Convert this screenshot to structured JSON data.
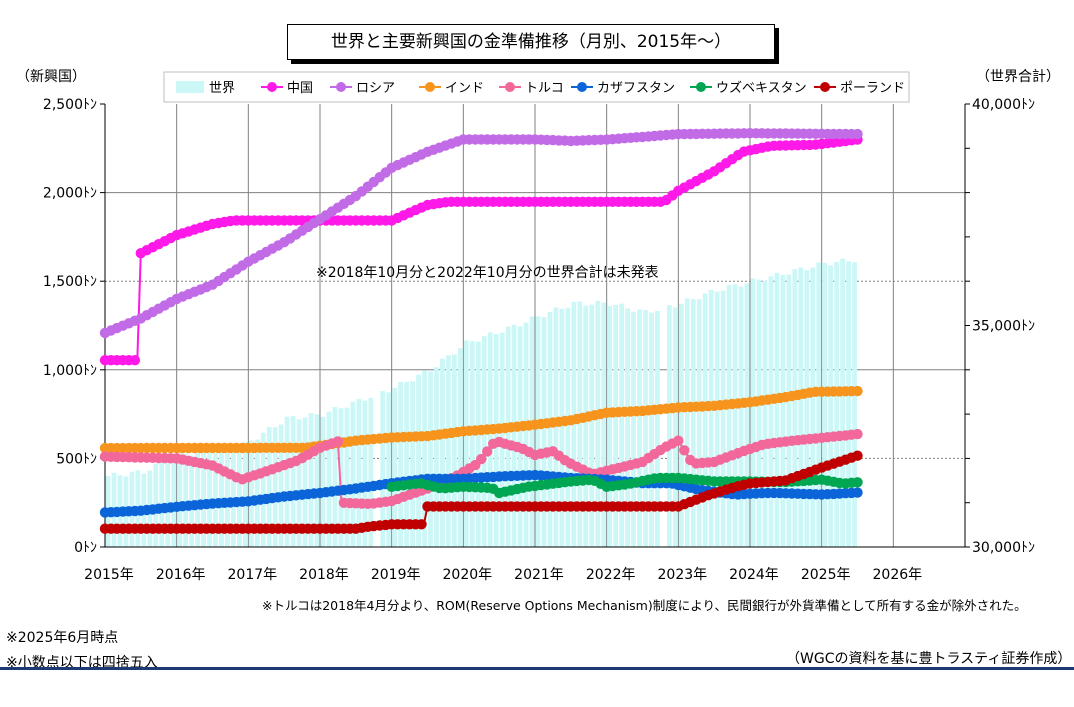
{
  "chart_data": {
    "type": "line",
    "title": "世界と主要新興国の金準備推移（月別、2015年～）",
    "left_axis": {
      "unit_label": "（新興国）",
      "min": 0,
      "max": 2500,
      "step": 500,
      "tick_labels": [
        "0ﾄﾝ",
        "500ﾄﾝ",
        "1,000ﾄﾝ",
        "1,500ﾄﾝ",
        "2,000ﾄﾝ",
        "2,500ﾄﾝ"
      ]
    },
    "right_axis": {
      "unit_label": "（世界合計）",
      "min": 30000,
      "max": 40000,
      "tick_labels": [
        "30,000ﾄﾝ",
        "35,000ﾄﾝ",
        "40,000ﾄﾝ"
      ]
    },
    "x_axis": {
      "start": 2015,
      "end": 2027,
      "tick_labels": [
        "2015年",
        "2016年",
        "2017年",
        "2018年",
        "2019年",
        "2020年",
        "2021年",
        "2022年",
        "2023年",
        "2024年",
        "2025年",
        "2026年"
      ]
    },
    "grid": true,
    "legend_position": "top",
    "world": {
      "name": "世界",
      "color": "#ccf7f7",
      "axis": "right",
      "points": [
        [
          2015.0,
          31600
        ],
        [
          2015.5,
          31700
        ],
        [
          2016.0,
          32100
        ],
        [
          2016.8,
          32200
        ],
        [
          2017.5,
          32900
        ],
        [
          2018.0,
          33000
        ],
        [
          2018.5,
          33300
        ],
        [
          2019.0,
          33600
        ],
        [
          2019.5,
          34000
        ],
        [
          2020.0,
          34600
        ],
        [
          2020.7,
          35000
        ],
        [
          2021.0,
          35200
        ],
        [
          2021.5,
          35500
        ],
        [
          2022.0,
          35500
        ],
        [
          2022.5,
          35300
        ],
        [
          2023.0,
          35500
        ],
        [
          2023.5,
          35800
        ],
        [
          2024.0,
          36000
        ],
        [
          2024.5,
          36200
        ],
        [
          2025.0,
          36400
        ],
        [
          2025.5,
          36500
        ]
      ],
      "missing": [
        "2018年10月",
        "2022年10月"
      ]
    },
    "series": [
      {
        "name": "中国",
        "color": "#ff19e8",
        "points": [
          [
            2015.0,
            1054
          ],
          [
            2015.45,
            1054
          ],
          [
            2015.5,
            1658
          ],
          [
            2016.0,
            1760
          ],
          [
            2016.5,
            1823
          ],
          [
            2016.8,
            1843
          ],
          [
            2019.0,
            1843
          ],
          [
            2019.5,
            1930
          ],
          [
            2019.8,
            1948
          ],
          [
            2022.8,
            1948
          ],
          [
            2023.0,
            2010
          ],
          [
            2023.5,
            2120
          ],
          [
            2023.9,
            2230
          ],
          [
            2024.3,
            2264
          ],
          [
            2024.9,
            2270
          ],
          [
            2025.5,
            2299
          ]
        ]
      },
      {
        "name": "ロシア",
        "color": "#c26be6",
        "points": [
          [
            2015.0,
            1208
          ],
          [
            2015.5,
            1290
          ],
          [
            2016.0,
            1400
          ],
          [
            2016.5,
            1480
          ],
          [
            2017.0,
            1610
          ],
          [
            2017.5,
            1720
          ],
          [
            2018.0,
            1850
          ],
          [
            2018.5,
            1980
          ],
          [
            2019.0,
            2140
          ],
          [
            2019.5,
            2230
          ],
          [
            2020.0,
            2300
          ],
          [
            2021.0,
            2300
          ],
          [
            2021.5,
            2292
          ],
          [
            2022.0,
            2299
          ],
          [
            2023.0,
            2330
          ],
          [
            2024.0,
            2335
          ],
          [
            2025.5,
            2330
          ]
        ]
      },
      {
        "name": "インド",
        "color": "#f7941d",
        "points": [
          [
            2015.0,
            558
          ],
          [
            2017.8,
            560
          ],
          [
            2018.5,
            600
          ],
          [
            2019.0,
            618
          ],
          [
            2019.5,
            626
          ],
          [
            2020.0,
            653
          ],
          [
            2020.5,
            668
          ],
          [
            2021.0,
            690
          ],
          [
            2021.5,
            715
          ],
          [
            2022.0,
            758
          ],
          [
            2022.5,
            768
          ],
          [
            2023.0,
            787
          ],
          [
            2023.5,
            797
          ],
          [
            2024.0,
            817
          ],
          [
            2024.5,
            846
          ],
          [
            2024.9,
            876
          ],
          [
            2025.5,
            880
          ]
        ]
      },
      {
        "name": "トルコ",
        "color": "#f2689b",
        "points": [
          [
            2015.0,
            510
          ],
          [
            2015.5,
            505
          ],
          [
            2016.0,
            500
          ],
          [
            2016.5,
            460
          ],
          [
            2016.9,
            380
          ],
          [
            2017.2,
            420
          ],
          [
            2017.7,
            490
          ],
          [
            2018.0,
            560
          ],
          [
            2018.25,
            596
          ],
          [
            2018.3,
            250
          ],
          [
            2018.7,
            243
          ],
          [
            2019.0,
            260
          ],
          [
            2019.5,
            330
          ],
          [
            2019.9,
            400
          ],
          [
            2020.2,
            470
          ],
          [
            2020.45,
            600
          ],
          [
            2020.6,
            580
          ],
          [
            2020.8,
            560
          ],
          [
            2021.0,
            520
          ],
          [
            2021.25,
            540
          ],
          [
            2021.45,
            480
          ],
          [
            2021.8,
            410
          ],
          [
            2022.0,
            430
          ],
          [
            2022.5,
            480
          ],
          [
            2022.8,
            560
          ],
          [
            2023.0,
            600
          ],
          [
            2023.2,
            470
          ],
          [
            2023.5,
            480
          ],
          [
            2023.9,
            540
          ],
          [
            2024.2,
            580
          ],
          [
            2024.6,
            600
          ],
          [
            2025.0,
            616
          ],
          [
            2025.5,
            637
          ]
        ]
      },
      {
        "name": "カザフスタン",
        "color": "#0b64d8",
        "points": [
          [
            2015.0,
            195
          ],
          [
            2015.5,
            205
          ],
          [
            2016.0,
            227
          ],
          [
            2016.5,
            245
          ],
          [
            2017.0,
            258
          ],
          [
            2017.5,
            285
          ],
          [
            2018.0,
            305
          ],
          [
            2018.5,
            330
          ],
          [
            2019.0,
            360
          ],
          [
            2019.5,
            385
          ],
          [
            2020.0,
            385
          ],
          [
            2020.5,
            398
          ],
          [
            2021.0,
            406
          ],
          [
            2021.5,
            390
          ],
          [
            2022.0,
            380
          ],
          [
            2022.5,
            360
          ],
          [
            2022.9,
            360
          ],
          [
            2023.3,
            322
          ],
          [
            2023.8,
            296
          ],
          [
            2024.3,
            306
          ],
          [
            2025.0,
            296
          ],
          [
            2025.5,
            307
          ]
        ]
      },
      {
        "name": "ウズベキスタン",
        "color": "#00a651",
        "points": [
          [
            2019.0,
            340
          ],
          [
            2019.4,
            360
          ],
          [
            2019.7,
            330
          ],
          [
            2020.0,
            340
          ],
          [
            2020.4,
            333
          ],
          [
            2020.5,
            305
          ],
          [
            2020.9,
            340
          ],
          [
            2021.5,
            370
          ],
          [
            2021.8,
            380
          ],
          [
            2022.0,
            340
          ],
          [
            2022.3,
            355
          ],
          [
            2022.7,
            390
          ],
          [
            2023.0,
            390
          ],
          [
            2023.5,
            370
          ],
          [
            2024.0,
            370
          ],
          [
            2024.5,
            366
          ],
          [
            2025.0,
            380
          ],
          [
            2025.3,
            358
          ],
          [
            2025.5,
            365
          ]
        ]
      },
      {
        "name": "ポーランド",
        "color": "#c00000",
        "points": [
          [
            2015.0,
            103
          ],
          [
            2016.0,
            103
          ],
          [
            2017.0,
            103
          ],
          [
            2018.0,
            103
          ],
          [
            2018.5,
            103
          ],
          [
            2018.7,
            116
          ],
          [
            2019.0,
            128
          ],
          [
            2019.45,
            128
          ],
          [
            2019.5,
            229
          ],
          [
            2021.0,
            229
          ],
          [
            2022.0,
            229
          ],
          [
            2023.0,
            229
          ],
          [
            2023.4,
            290
          ],
          [
            2023.8,
            340
          ],
          [
            2024.0,
            359
          ],
          [
            2024.5,
            376
          ],
          [
            2025.0,
            448
          ],
          [
            2025.5,
            515
          ]
        ]
      }
    ],
    "annotations": [
      "※2018年10月分と2022年10月分の世界合計は未発表"
    ]
  },
  "notes": {
    "turkey": "※トルコは2018年4月分より、ROM(Reserve Options Mechanism)制度により、民間銀行が外貨準備として所有する金が除外された。",
    "as_of": "※2025年6月時点",
    "rounding": "※小数点以下は四捨五入",
    "source": "（WGCの資料を基に豊トラスティ証券作成）"
  }
}
